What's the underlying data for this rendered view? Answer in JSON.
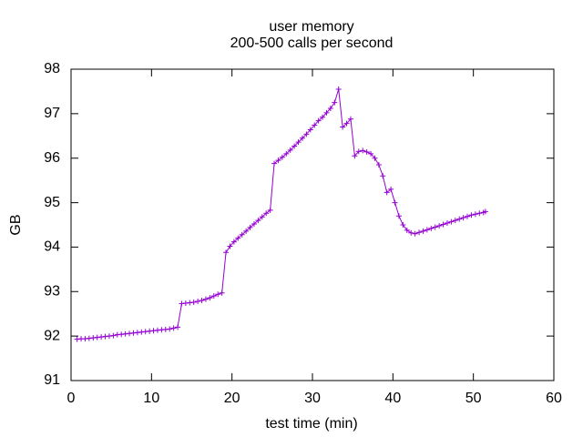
{
  "chart_data": {
    "type": "line",
    "title": "user memory",
    "subtitle": "200-500 calls per second",
    "x_label": "test time (min)",
    "y_label": "GB",
    "xlim": [
      0,
      60
    ],
    "xticks": [
      0,
      10,
      20,
      30,
      40,
      50,
      60
    ],
    "ylim": [
      91,
      98
    ],
    "yticks": [
      91,
      92,
      93,
      94,
      95,
      96,
      97,
      98
    ],
    "series": [
      {
        "color": "#9400d3",
        "marker": "+",
        "x": [
          0.75,
          1.25,
          1.75,
          2.25,
          2.75,
          3.25,
          3.75,
          4.25,
          4.75,
          5.25,
          5.75,
          6.25,
          6.75,
          7.25,
          7.75,
          8.25,
          8.75,
          9.25,
          9.75,
          10.25,
          10.75,
          11.25,
          11.75,
          12.25,
          12.75,
          13.25,
          13.75,
          14.25,
          14.75,
          15.25,
          15.75,
          16.25,
          16.75,
          17.25,
          17.75,
          18.25,
          18.75,
          19.25,
          19.75,
          20.25,
          20.75,
          21.25,
          21.75,
          22.25,
          22.75,
          23.25,
          23.75,
          24.25,
          24.75,
          25.25,
          25.75,
          26.25,
          26.75,
          27.25,
          27.75,
          28.25,
          28.75,
          29.25,
          29.75,
          30.25,
          30.75,
          31.25,
          31.75,
          32.25,
          32.75,
          33.25,
          33.75,
          34.25,
          34.75,
          35.25,
          35.75,
          36.25,
          36.75,
          37.25,
          37.75,
          38.25,
          38.75,
          39.25,
          39.75,
          40.25,
          40.75,
          41.25,
          41.75,
          42.25,
          42.75,
          43.25,
          43.75,
          44.25,
          44.75,
          45.25,
          45.75,
          46.25,
          46.75,
          47.25,
          47.75,
          48.25,
          48.75,
          49.25,
          49.75,
          50.25,
          50.75,
          51.25,
          51.5
        ],
        "values": [
          91.93,
          91.94,
          91.94,
          91.95,
          91.96,
          91.97,
          91.98,
          91.99,
          92.0,
          92.01,
          92.03,
          92.04,
          92.05,
          92.06,
          92.07,
          92.08,
          92.09,
          92.1,
          92.11,
          92.12,
          92.13,
          92.14,
          92.15,
          92.16,
          92.18,
          92.2,
          92.73,
          92.74,
          92.75,
          92.76,
          92.78,
          92.8,
          92.83,
          92.86,
          92.9,
          92.94,
          92.97,
          93.88,
          94.02,
          94.12,
          94.2,
          94.28,
          94.36,
          94.44,
          94.52,
          94.6,
          94.68,
          94.76,
          94.83,
          95.88,
          95.95,
          96.02,
          96.1,
          96.18,
          96.27,
          96.36,
          96.45,
          96.54,
          96.64,
          96.74,
          96.84,
          96.92,
          97.02,
          97.12,
          97.25,
          97.55,
          96.7,
          96.78,
          96.88,
          96.05,
          96.15,
          96.17,
          96.14,
          96.1,
          96.0,
          95.85,
          95.6,
          95.23,
          95.3,
          95.0,
          94.7,
          94.5,
          94.38,
          94.32,
          94.3,
          94.33,
          94.36,
          94.39,
          94.42,
          94.45,
          94.48,
          94.51,
          94.54,
          94.57,
          94.6,
          94.63,
          94.66,
          94.69,
          94.72,
          94.74,
          94.76,
          94.78,
          94.8
        ]
      }
    ]
  }
}
